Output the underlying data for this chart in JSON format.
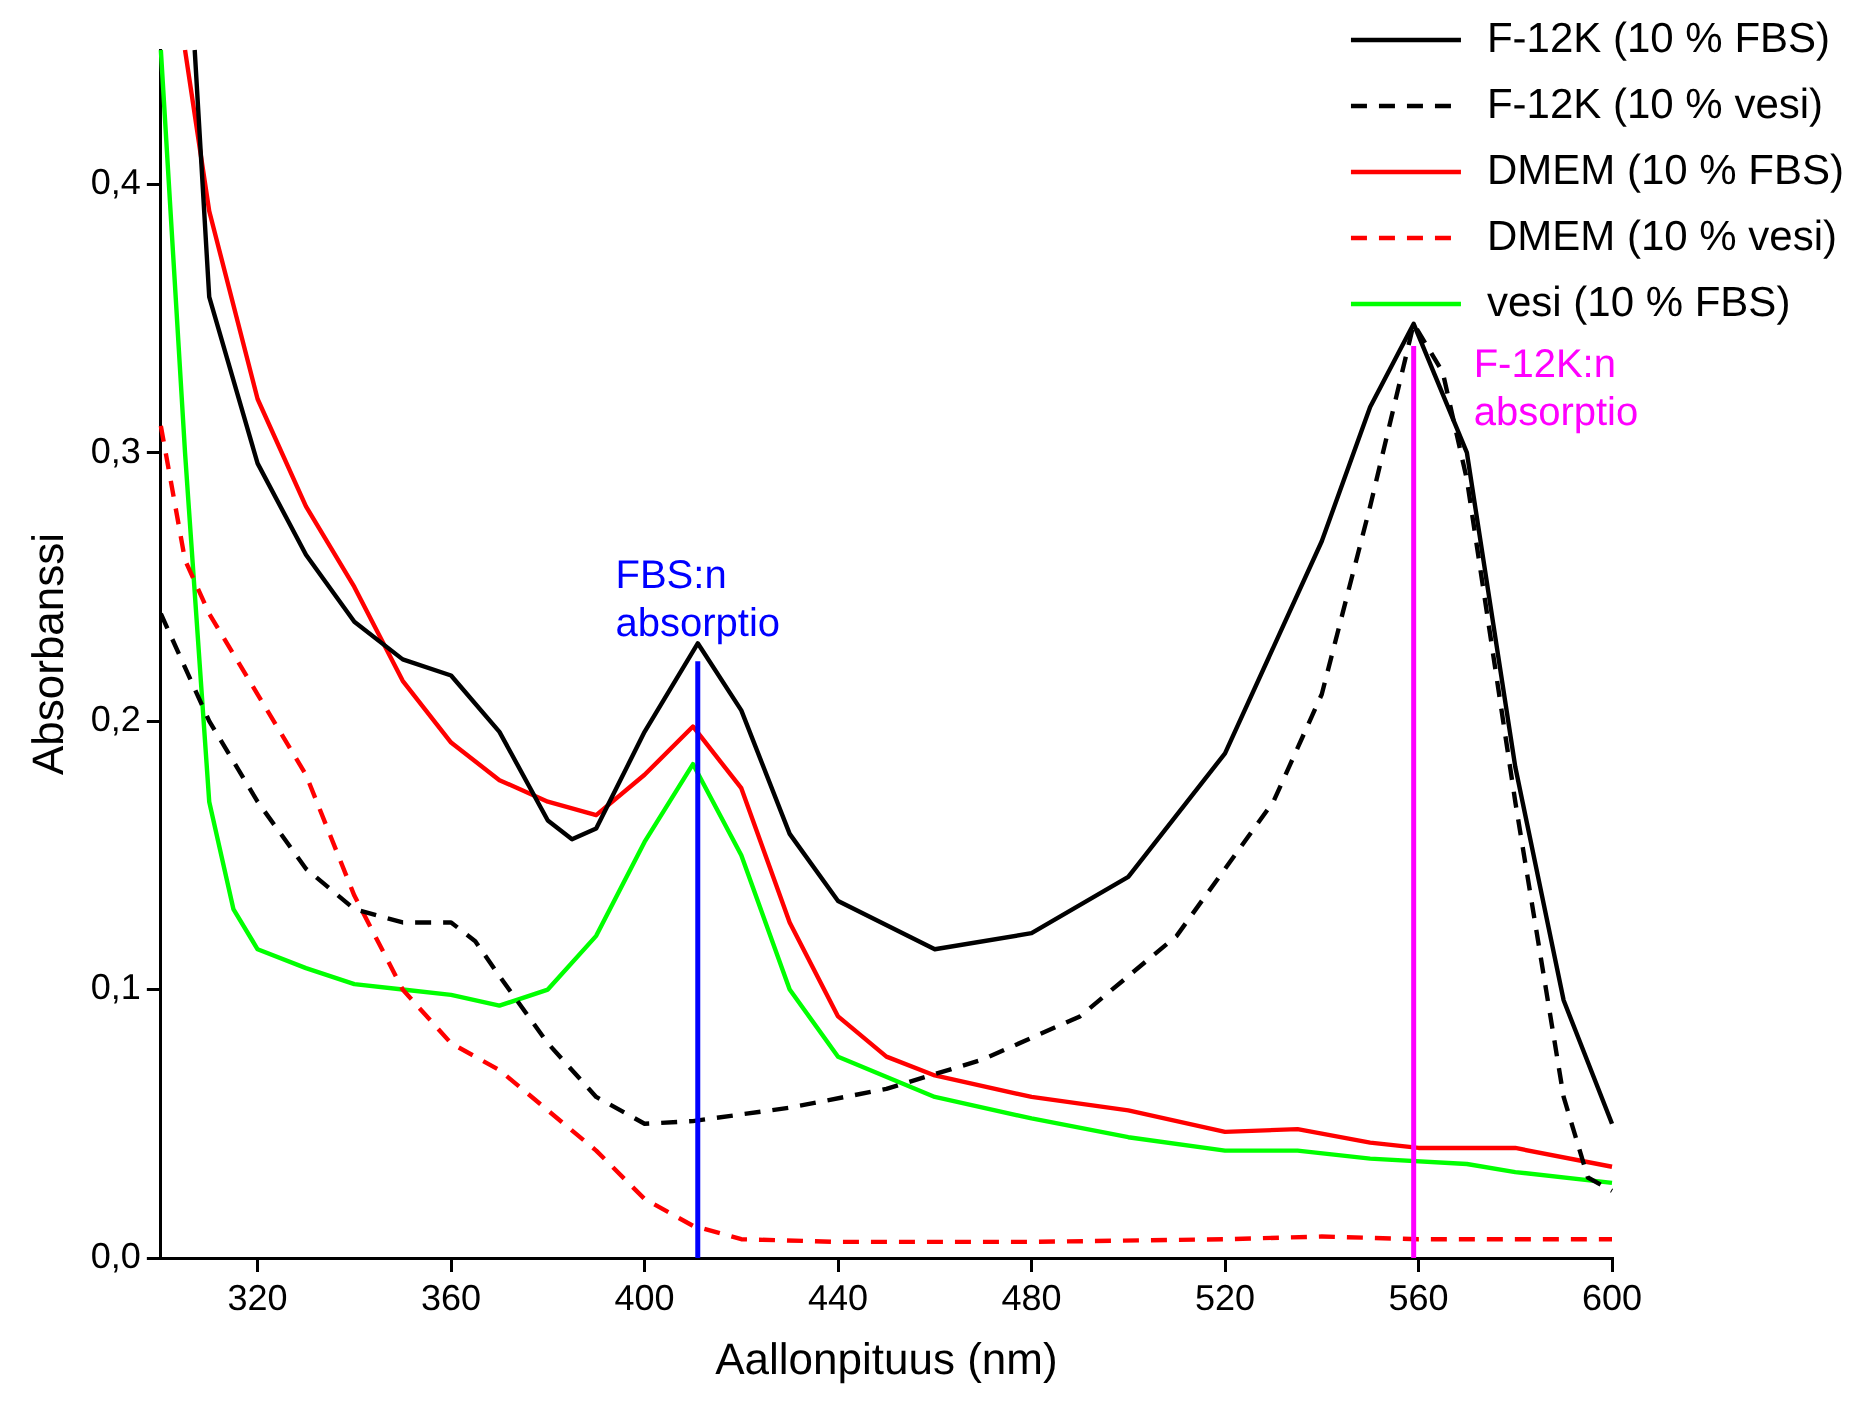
{
  "chart_data": {
    "type": "line",
    "xlabel": "Aallonpituus (nm)",
    "ylabel": "Absorbanssi",
    "xlim": [
      300,
      600
    ],
    "xticks": [
      320,
      360,
      400,
      440,
      480,
      520,
      560,
      600
    ],
    "ylim": [
      0,
      0.45
    ],
    "yticks": [
      {
        "value": 0,
        "label": "0,0"
      },
      {
        "value": 0.1,
        "label": "0,1"
      },
      {
        "value": 0.2,
        "label": "0,2"
      },
      {
        "value": 0.3,
        "label": "0,3"
      },
      {
        "value": 0.4,
        "label": "0,4"
      }
    ],
    "grid": false,
    "legend": "top right",
    "marker": "none",
    "series": [
      {
        "name": "F-12K (10 % FBS)",
        "color": "#000000",
        "line_style": "solid",
        "x": [
          307,
          310,
          320,
          330,
          340,
          350,
          360,
          370,
          380,
          385,
          390,
          400,
          411,
          420,
          430,
          440,
          460,
          480,
          500,
          520,
          540,
          550,
          559,
          570,
          580,
          590,
          600
        ],
        "values": [
          0.45,
          0.358,
          0.296,
          0.262,
          0.237,
          0.223,
          0.217,
          0.196,
          0.163,
          0.156,
          0.16,
          0.196,
          0.229,
          0.204,
          0.158,
          0.133,
          0.115,
          0.121,
          0.142,
          0.188,
          0.267,
          0.317,
          0.348,
          0.3,
          0.183,
          0.096,
          0.05
        ]
      },
      {
        "name": "F-12K (10 % vesi)",
        "color": "#000000",
        "line_style": "dashed",
        "x": [
          300,
          310,
          320,
          330,
          340,
          350,
          360,
          365,
          370,
          380,
          390,
          400,
          410,
          430,
          450,
          470,
          490,
          510,
          530,
          540,
          550,
          559,
          565,
          570,
          580,
          590,
          595,
          600
        ],
        "values": [
          0.24,
          0.2,
          0.17,
          0.145,
          0.13,
          0.125,
          0.125,
          0.118,
          0.105,
          0.08,
          0.06,
          0.05,
          0.051,
          0.056,
          0.063,
          0.074,
          0.09,
          0.12,
          0.17,
          0.21,
          0.28,
          0.348,
          0.33,
          0.29,
          0.17,
          0.06,
          0.03,
          0.025
        ]
      },
      {
        "name": "DMEM (10 % FBS)",
        "color": "#ff0000",
        "line_style": "solid",
        "x": [
          305,
          310,
          320,
          330,
          340,
          350,
          360,
          370,
          380,
          390,
          400,
          410,
          420,
          430,
          440,
          450,
          460,
          480,
          500,
          520,
          535,
          550,
          560,
          580,
          600
        ],
        "values": [
          0.45,
          0.39,
          0.32,
          0.28,
          0.25,
          0.215,
          0.192,
          0.178,
          0.17,
          0.165,
          0.18,
          0.198,
          0.175,
          0.125,
          0.09,
          0.075,
          0.068,
          0.06,
          0.055,
          0.047,
          0.048,
          0.043,
          0.041,
          0.041,
          0.034
        ]
      },
      {
        "name": "DMEM (10 % vesi)",
        "color": "#ff0000",
        "line_style": "dashed",
        "x": [
          300,
          305,
          310,
          320,
          330,
          340,
          350,
          360,
          370,
          380,
          390,
          400,
          410,
          420,
          440,
          480,
          520,
          540,
          560,
          600
        ],
        "values": [
          0.31,
          0.26,
          0.24,
          0.21,
          0.18,
          0.135,
          0.1,
          0.08,
          0.07,
          0.055,
          0.04,
          0.022,
          0.012,
          0.007,
          0.006,
          0.006,
          0.007,
          0.008,
          0.007,
          0.007
        ]
      },
      {
        "name": "vesi (10 % FBS)",
        "color": "#00ff00",
        "line_style": "solid",
        "x": [
          300,
          305,
          310,
          315,
          320,
          330,
          340,
          350,
          360,
          370,
          380,
          390,
          400,
          410,
          420,
          430,
          440,
          460,
          480,
          500,
          520,
          535,
          550,
          570,
          580,
          600
        ],
        "values": [
          0.45,
          0.3,
          0.17,
          0.13,
          0.115,
          0.108,
          0.102,
          0.1,
          0.098,
          0.094,
          0.1,
          0.12,
          0.155,
          0.184,
          0.15,
          0.1,
          0.075,
          0.06,
          0.052,
          0.045,
          0.04,
          0.04,
          0.037,
          0.035,
          0.032,
          0.028
        ]
      }
    ],
    "ref_lines": [
      {
        "axis": "x",
        "value": 411,
        "label": "FBS:n absorptio",
        "color": "#0000ff"
      },
      {
        "axis": "x",
        "value": 559,
        "label": "F-12K:n absorptio",
        "color": "#ff00ff"
      }
    ]
  }
}
